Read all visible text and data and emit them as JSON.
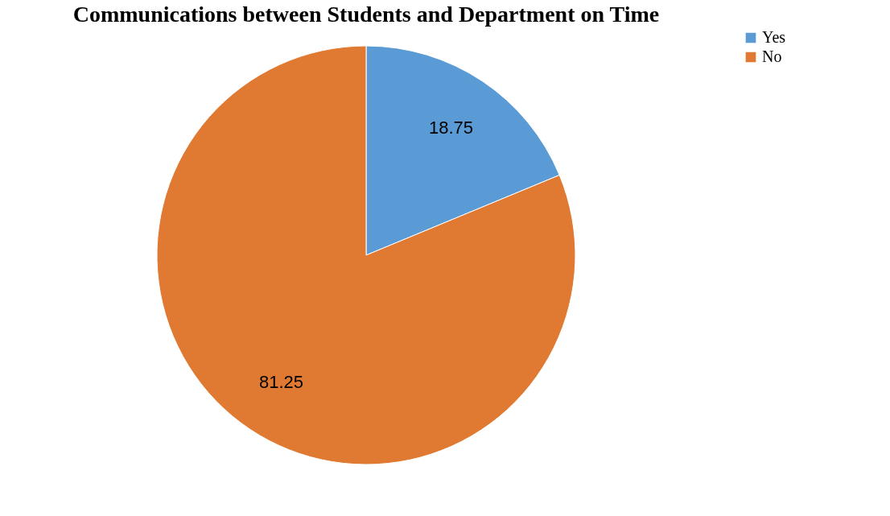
{
  "chart_data": {
    "type": "pie",
    "title": "Communications between Students and Department on Time",
    "categories": [
      "Yes",
      "No"
    ],
    "values": [
      18.75,
      81.25
    ],
    "colors": [
      "#5b9bd5",
      "#e07a32"
    ],
    "data_labels": true,
    "legend": "right"
  }
}
